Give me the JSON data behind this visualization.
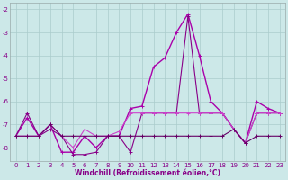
{
  "xlabel": "Windchill (Refroidissement éolien,°C)",
  "bg_color": "#cce8e8",
  "grid_color": "#aacccc",
  "ylim": [
    -8.6,
    -1.7
  ],
  "xlim": [
    -0.5,
    23.5
  ],
  "yticks": [
    -8,
    -7,
    -6,
    -5,
    -4,
    -3,
    -2
  ],
  "xticks": [
    0,
    1,
    2,
    3,
    4,
    5,
    6,
    7,
    8,
    9,
    10,
    11,
    12,
    13,
    14,
    15,
    16,
    17,
    18,
    19,
    20,
    21,
    22,
    23
  ],
  "series": [
    {
      "x": [
        0,
        1,
        2,
        3,
        4,
        5,
        6,
        7,
        8,
        9,
        10,
        11,
        12,
        13,
        14,
        15,
        16,
        17,
        18,
        19,
        20,
        21,
        22,
        23
      ],
      "y": [
        -7.5,
        -6.7,
        -7.5,
        -7.0,
        -8.2,
        -8.2,
        -7.5,
        -8.0,
        -7.5,
        -7.5,
        -6.3,
        -6.2,
        -4.5,
        -4.1,
        -3.0,
        -2.2,
        -4.0,
        -6.0,
        -6.5,
        -7.2,
        -7.8,
        -6.0,
        -6.3,
        -6.5
      ],
      "color": "#aa00aa",
      "lw": 1.0
    },
    {
      "x": [
        0,
        1,
        2,
        3,
        4,
        5,
        6,
        7,
        8,
        9,
        10,
        11,
        12,
        13,
        14,
        15,
        16,
        17,
        18,
        19,
        20,
        21,
        22,
        23
      ],
      "y": [
        -7.5,
        -6.5,
        -7.5,
        -7.2,
        -7.5,
        -8.3,
        -8.3,
        -8.2,
        -7.5,
        -7.5,
        -8.2,
        -6.5,
        -6.5,
        -6.5,
        -6.5,
        -2.3,
        -6.5,
        -6.5,
        -6.5,
        -7.2,
        -7.8,
        -6.5,
        -6.5,
        -6.5
      ],
      "color": "#880088",
      "lw": 0.8
    },
    {
      "x": [
        0,
        1,
        2,
        3,
        4,
        5,
        6,
        7,
        8,
        9,
        10,
        11,
        12,
        13,
        14,
        15,
        16,
        17,
        18,
        19,
        20,
        21,
        22,
        23
      ],
      "y": [
        -7.5,
        -7.5,
        -7.5,
        -7.0,
        -7.5,
        -8.0,
        -7.2,
        -7.5,
        -7.5,
        -7.3,
        -6.5,
        -6.5,
        -6.5,
        -6.5,
        -6.5,
        -6.5,
        -6.5,
        -6.5,
        -6.5,
        -7.2,
        -7.8,
        -6.5,
        -6.5,
        -6.5
      ],
      "color": "#cc44cc",
      "lw": 0.8
    },
    {
      "x": [
        0,
        1,
        2,
        3,
        4,
        5,
        6,
        7,
        8,
        9,
        10,
        11,
        12,
        13,
        14,
        15,
        16,
        17,
        18,
        19,
        20,
        21,
        22,
        23
      ],
      "y": [
        -7.5,
        -7.5,
        -7.5,
        -7.0,
        -7.5,
        -7.5,
        -7.5,
        -7.5,
        -7.5,
        -7.5,
        -7.5,
        -7.5,
        -7.5,
        -7.5,
        -7.5,
        -7.5,
        -7.5,
        -7.5,
        -7.5,
        -7.2,
        -7.8,
        -7.5,
        -7.5,
        -7.5
      ],
      "color": "#660066",
      "lw": 0.8
    }
  ]
}
